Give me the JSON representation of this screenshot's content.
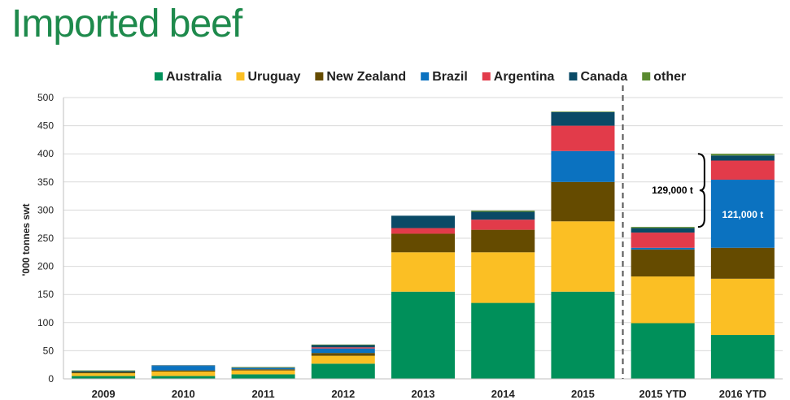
{
  "page": {
    "title": "Imported beef"
  },
  "chart_data": {
    "type": "bar",
    "stacked": true,
    "title": "",
    "xlabel": "",
    "ylabel": "'000 tonnes swt",
    "ylim": [
      0,
      500
    ],
    "yticks": [
      0,
      50,
      100,
      150,
      200,
      250,
      300,
      350,
      400,
      450,
      500
    ],
    "grid": true,
    "legend_position": "top",
    "categories": [
      "2009",
      "2010",
      "2011",
      "2012",
      "2013",
      "2014",
      "2015",
      "2015 YTD",
      "2016 YTD"
    ],
    "series": [
      {
        "name": "Australia",
        "color": "#00905a",
        "values": [
          5,
          5,
          8,
          27,
          155,
          135,
          155,
          99,
          78
        ]
      },
      {
        "name": "Uruguay",
        "color": "#fbbf24",
        "values": [
          5,
          8,
          7,
          14,
          70,
          90,
          125,
          83,
          100
        ]
      },
      {
        "name": "New Zealand",
        "color": "#654b00",
        "values": [
          2,
          2,
          2,
          5,
          33,
          40,
          70,
          48,
          55
        ]
      },
      {
        "name": "Brazil",
        "color": "#0b72c0",
        "values": [
          0,
          8,
          2,
          8,
          0,
          0,
          55,
          3,
          121
        ]
      },
      {
        "name": "Argentina",
        "color": "#e23b4a",
        "values": [
          0,
          0,
          0,
          2,
          10,
          18,
          45,
          27,
          34
        ]
      },
      {
        "name": "Canada",
        "color": "#0a4a66",
        "values": [
          2,
          1,
          1,
          4,
          22,
          14,
          24,
          8,
          9
        ]
      },
      {
        "name": "other",
        "color": "#5a8a30",
        "values": [
          1,
          0,
          1,
          1,
          0,
          2,
          1,
          2,
          3
        ]
      }
    ],
    "annotations": {
      "bracket_label": "129,000 t",
      "brazil_label": "121,000 t",
      "divider_after_category": "2015"
    }
  }
}
